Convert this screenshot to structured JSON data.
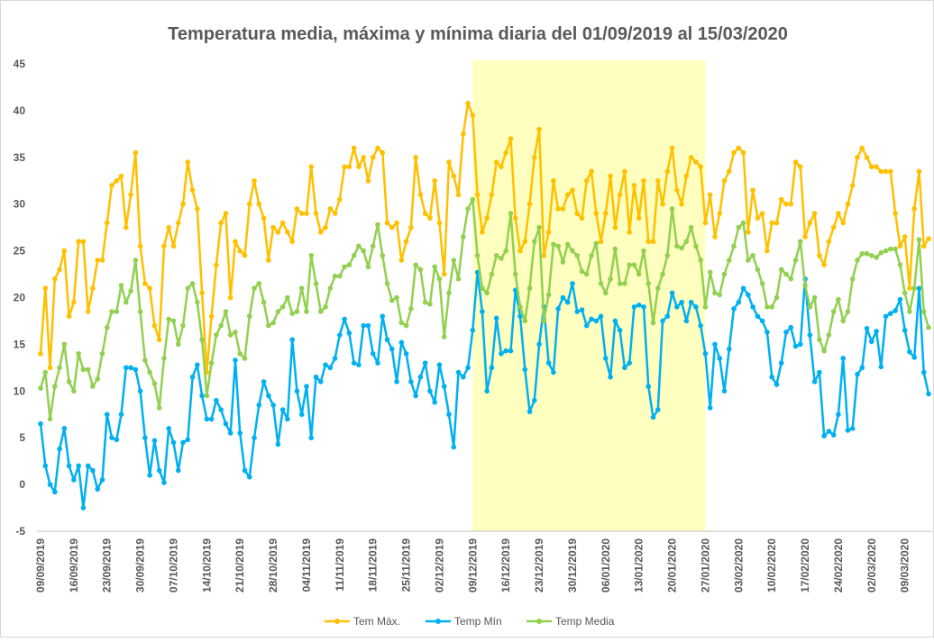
{
  "chart_data": {
    "type": "line",
    "title": "Temperatura media, máxima y mínima diaria del 01/09/2019 al 15/03/2020",
    "categories": [
      "09/09/2019",
      null,
      null,
      null,
      null,
      null,
      null,
      "16/09/2019",
      null,
      null,
      null,
      null,
      null,
      null,
      "23/09/2019",
      null,
      null,
      null,
      null,
      null,
      null,
      "30/09/2019",
      null,
      null,
      null,
      null,
      null,
      null,
      "07/10/2019",
      null,
      null,
      null,
      null,
      null,
      null,
      "14/10/2019",
      null,
      null,
      null,
      null,
      null,
      null,
      "21/10/2019",
      null,
      null,
      null,
      null,
      null,
      null,
      "28/10/2019",
      null,
      null,
      null,
      null,
      null,
      null,
      "04/11/2019",
      null,
      null,
      null,
      null,
      null,
      null,
      "11/11/2019",
      null,
      null,
      null,
      null,
      null,
      null,
      "18/11/2019",
      null,
      null,
      null,
      null,
      null,
      null,
      "25/11/2019",
      null,
      null,
      null,
      null,
      null,
      null,
      "02/12/2019",
      null,
      null,
      null,
      null,
      null,
      null,
      "09/12/2019",
      null,
      null,
      null,
      null,
      null,
      null,
      "16/12/2019",
      null,
      null,
      null,
      null,
      null,
      null,
      "23/12/2019",
      null,
      null,
      null,
      null,
      null,
      null,
      "30/12/2019",
      null,
      null,
      null,
      null,
      null,
      null,
      "06/01/2020",
      null,
      null,
      null,
      null,
      null,
      null,
      "13/01/2020",
      null,
      null,
      null,
      null,
      null,
      null,
      "20/01/2020",
      null,
      null,
      null,
      null,
      null,
      null,
      "27/01/2020",
      null,
      null,
      null,
      null,
      null,
      null,
      "03/02/2020",
      null,
      null,
      null,
      null,
      null,
      null,
      "10/02/2020",
      null,
      null,
      null,
      null,
      null,
      null,
      "17/02/2020",
      null,
      null,
      null,
      null,
      null,
      null,
      "24/02/2020",
      null,
      null,
      null,
      null,
      null,
      null,
      "02/03/2020",
      null,
      null,
      null,
      null,
      null,
      null,
      "09/03/2020",
      null,
      null,
      null,
      null,
      null
    ],
    "series": [
      {
        "name": "Tem Máx.",
        "color": "#ffc000",
        "values": [
          14,
          21,
          12.5,
          22,
          23,
          25,
          18,
          19.5,
          26,
          26,
          18.5,
          21,
          24,
          24,
          28,
          32,
          32.5,
          33,
          27.5,
          31,
          35.5,
          25.5,
          21.5,
          21,
          17,
          15.5,
          25.5,
          27.5,
          25.5,
          28,
          30,
          34.5,
          31.5,
          29.5,
          20.5,
          12,
          18,
          23.5,
          28,
          29,
          20,
          26,
          25,
          24.5,
          30,
          32.5,
          30,
          28.5,
          24,
          27.5,
          27,
          28,
          27,
          26,
          29.5,
          29,
          29,
          34,
          29,
          27,
          27.5,
          29.5,
          29,
          30.5,
          34,
          34,
          36,
          34,
          35,
          32.5,
          35,
          36,
          35.5,
          28,
          27.5,
          28,
          24,
          26,
          27.5,
          35,
          31,
          29,
          28.5,
          32.5,
          28,
          22.5,
          34.5,
          33,
          31,
          37.5,
          40.8,
          39.5,
          31,
          27,
          28.5,
          31,
          34.5,
          34,
          35.5,
          37,
          28.5,
          25,
          26,
          30,
          35,
          38,
          24.5,
          27,
          32.5,
          29.5,
          29.5,
          31,
          31.5,
          29,
          28.5,
          32.5,
          33.5,
          29,
          26,
          29,
          33,
          27.5,
          31,
          33.5,
          27,
          32,
          28.5,
          32.5,
          26,
          26,
          32.5,
          30,
          33.5,
          36,
          31.5,
          30,
          33,
          35,
          34.5,
          34,
          28,
          31,
          26.5,
          29,
          32.5,
          33.5,
          35.5,
          36,
          35.5,
          27,
          31.5,
          28.5,
          29,
          25,
          28,
          28,
          30.5,
          30,
          30,
          34.5,
          34,
          26.5,
          28,
          29,
          24.5,
          23.5,
          26,
          27.5,
          29,
          28,
          30,
          32,
          35,
          36,
          35,
          34,
          34,
          33.5,
          33.5,
          33.5,
          29,
          25.5,
          26.5,
          21,
          29.5,
          33.5,
          25.5,
          26.3
        ]
      },
      {
        "name": "Temp Mín",
        "color": "#00b0f0",
        "values": [
          6.5,
          2,
          0,
          -0.8,
          3.8,
          6,
          2,
          0.5,
          2,
          -2.5,
          2,
          1.5,
          -0.5,
          0.5,
          7.5,
          5,
          4.8,
          7.5,
          12.5,
          12.5,
          12.3,
          10,
          5,
          1,
          4.7,
          1.5,
          0.2,
          6,
          4.5,
          1.5,
          4.5,
          4.8,
          11.5,
          12.8,
          9.5,
          7,
          7,
          9,
          8,
          6.5,
          5.5,
          13.3,
          5.5,
          1.5,
          0.8,
          5,
          8.5,
          11,
          9.5,
          8.5,
          4.3,
          8,
          7,
          15.5,
          10,
          7.5,
          10.5,
          5,
          11.5,
          11,
          12.8,
          12.5,
          13.5,
          16,
          17.7,
          16.2,
          13,
          12.8,
          17,
          17,
          14,
          13,
          18,
          15.5,
          14.5,
          11,
          15.2,
          14,
          11,
          9.5,
          11.5,
          13,
          10,
          8.8,
          12.8,
          10.5,
          7.5,
          4,
          12,
          11.5,
          12.5,
          16.5,
          22.7,
          18.5,
          10,
          12.5,
          17.8,
          14,
          14.3,
          14.3,
          20.8,
          18,
          12.3,
          7.8,
          9,
          15,
          19,
          13,
          12,
          18.8,
          20,
          19.5,
          21.5,
          18.5,
          18.7,
          17,
          17.7,
          17.5,
          18,
          13.5,
          11.5,
          17.5,
          16.5,
          12.5,
          13,
          19,
          19.2,
          19,
          10.5,
          7.2,
          8,
          17.5,
          18,
          20.5,
          19,
          19.5,
          17.5,
          19.5,
          19,
          17,
          14,
          8.2,
          15,
          13.5,
          10,
          14.5,
          18.8,
          19.5,
          21,
          20.3,
          19,
          18,
          17.5,
          16.3,
          11.5,
          10.7,
          13,
          16.3,
          16.8,
          14.8,
          15,
          22,
          16,
          11,
          12,
          5.2,
          5.7,
          5.3,
          7.5,
          13.5,
          5.8,
          6,
          11.8,
          12.5,
          16.7,
          15.3,
          16.4,
          12.6,
          18,
          18.3,
          18.6,
          19.8,
          16.5,
          14.2,
          13.6,
          21,
          12,
          9.7
        ]
      },
      {
        "name": "Temp Media",
        "color": "#92d050",
        "values": [
          10.3,
          12,
          7,
          10.5,
          12.5,
          15,
          11,
          10,
          14,
          12.3,
          12.3,
          10.5,
          11.3,
          14,
          16.8,
          18.5,
          18.5,
          21.3,
          19.5,
          20.7,
          24,
          18.5,
          13.3,
          12,
          10.8,
          8.2,
          13.5,
          17.7,
          17.5,
          15,
          17,
          21,
          21.5,
          19.5,
          15.5,
          9.5,
          13,
          16,
          17,
          18.5,
          16,
          16.3,
          14,
          13.5,
          18,
          21,
          21.5,
          19.5,
          17,
          17.3,
          18.5,
          19,
          20,
          18.3,
          18.5,
          21,
          18.5,
          24.5,
          21.5,
          18.5,
          19,
          21,
          22.3,
          22.3,
          23.3,
          23.5,
          24.5,
          25.5,
          25,
          23.3,
          25.5,
          27.8,
          24.5,
          21.5,
          19.7,
          20,
          17.3,
          17,
          18.8,
          23.5,
          23,
          19.5,
          19.3,
          23.3,
          22,
          15.8,
          20.5,
          24,
          22,
          26.5,
          29.5,
          30.5,
          24.5,
          21,
          20.5,
          22.5,
          24.5,
          24.2,
          25,
          29,
          22.5,
          19,
          17.5,
          21,
          26,
          27.5,
          17.5,
          20.3,
          25.7,
          25.5,
          23.8,
          25.7,
          25,
          24.5,
          22.8,
          22.5,
          24.5,
          25.8,
          21.5,
          20.5,
          22,
          25.2,
          21.5,
          21.5,
          23.5,
          23.5,
          22.5,
          25,
          21.5,
          17.3,
          21,
          22.5,
          24.5,
          29.5,
          25.5,
          25.3,
          26,
          27.5,
          25.5,
          24,
          19,
          22.7,
          20.5,
          20.3,
          22.5,
          24,
          25.5,
          27.5,
          28,
          24,
          24.5,
          23,
          21.5,
          19,
          19,
          20,
          23,
          22.5,
          22,
          24,
          26,
          21.3,
          19,
          20,
          15.5,
          14.3,
          16,
          18.5,
          19.8,
          17.5,
          18.5,
          22,
          24,
          24.7,
          24.7,
          24.5,
          24.3,
          24.8,
          25,
          25.2,
          25.2,
          23.5,
          20.5,
          18.5,
          21,
          26.2,
          18.5,
          16.8
        ]
      }
    ],
    "ylim": [
      -5,
      45
    ],
    "yticks": [
      -5,
      0,
      5,
      10,
      15,
      20,
      25,
      30,
      35,
      40,
      45
    ],
    "grid": false,
    "legend": "bottom",
    "highlight": {
      "start": 91,
      "end": 140,
      "color": "#ffffc0"
    }
  }
}
